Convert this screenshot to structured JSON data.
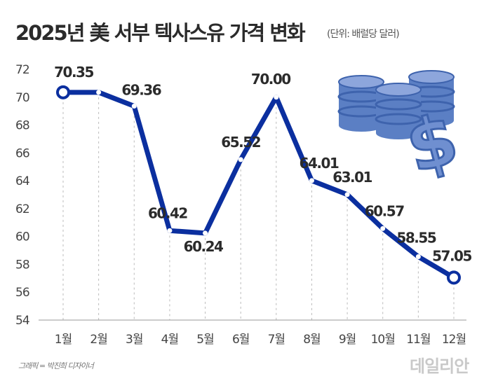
{
  "title": "2025년 美 서부 텍사스유 가격 변화",
  "unit": "(단위: 배럴당 달러)",
  "credit": "그래픽 = 박진희 디자이너",
  "logo_text": "데일리안",
  "colors": {
    "line": "#0b2f9f",
    "marker_fill": "#ffffff",
    "grid": "#bbbbbb",
    "illustration": "#5b7fc4"
  },
  "icons": [
    "oil-barrels-icon",
    "dollar-sign-icon"
  ],
  "chart_data": {
    "type": "line",
    "title": "2025년 美 서부 텍사스유 가격 변화",
    "categories": [
      "1월",
      "2월",
      "3월",
      "4월",
      "5월",
      "6월",
      "7월",
      "8월",
      "9월",
      "10월",
      "11월",
      "12월"
    ],
    "values": [
      70.35,
      70.35,
      69.36,
      60.42,
      60.24,
      65.52,
      70.0,
      64.01,
      63.01,
      60.57,
      58.55,
      57.05
    ],
    "data_labels": [
      "70.35",
      "",
      "69.36",
      "60.42",
      "60.24",
      "65.52",
      "70.00",
      "64.01",
      "63.01",
      "60.57",
      "58.55",
      "57.05"
    ],
    "ylim": [
      54,
      72
    ],
    "yticks": [
      "54",
      "56",
      "58",
      "60",
      "62",
      "64",
      "66",
      "68",
      "70",
      "72"
    ],
    "grid": "vertical dashed",
    "xlabel": "",
    "ylabel": ""
  }
}
